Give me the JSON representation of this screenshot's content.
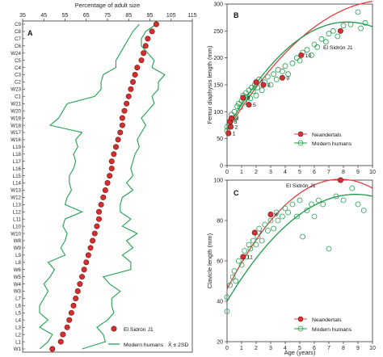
{
  "colors": {
    "red": "#d03030",
    "green": "#22a050",
    "neander_line": "#e04040",
    "modern_line": "#1e9a4a"
  },
  "chart_data": [
    {
      "panel": "A",
      "type": "line",
      "xlabel": "Percentage of adult size",
      "xlim": [
        35,
        115
      ],
      "xticks": [
        "35",
        "45",
        "55",
        "65",
        "75",
        "85",
        "95",
        "105",
        "115"
      ],
      "categories": [
        "C9",
        "C8",
        "C7",
        "C6",
        "W24",
        "C5",
        "C4",
        "C3",
        "C2",
        "W23",
        "C1",
        "W21",
        "W20",
        "W19",
        "W18",
        "W17",
        "W16",
        "L19",
        "L18",
        "L17",
        "L16",
        "L15",
        "L14",
        "W13",
        "W12",
        "L13",
        "L12",
        "L11",
        "L10",
        "W10",
        "W8",
        "W9",
        "L9",
        "L8",
        "W6",
        "W5",
        "W4",
        "W3",
        "L7",
        "L6",
        "L5",
        "L4",
        "L3",
        "L2",
        "L1",
        "W1"
      ],
      "sidron": [
        98,
        96,
        94,
        93,
        92,
        91,
        89,
        88,
        87,
        86,
        85,
        84,
        83,
        82,
        82,
        81,
        80,
        79,
        78,
        77,
        77,
        76,
        75,
        74,
        73,
        72,
        71,
        71,
        70,
        69,
        68,
        67,
        66,
        65,
        64,
        63,
        62,
        61,
        60,
        59,
        58,
        57,
        56,
        54,
        53,
        49
      ],
      "upper": [
        98,
        93,
        91,
        91,
        94,
        97,
        96,
        102,
        99,
        99,
        96,
        97,
        94,
        91,
        93,
        91,
        89,
        90,
        88,
        87,
        86,
        87,
        84,
        87,
        82,
        81,
        81,
        86,
        82,
        89,
        84,
        87,
        82,
        86,
        86,
        73,
        76,
        81,
        77,
        77,
        78,
        75,
        70,
        73,
        74,
        63
      ],
      "lower": [
        90,
        87,
        85,
        83,
        81,
        79,
        79,
        73,
        72,
        72,
        69,
        56,
        54,
        52,
        48,
        63,
        60,
        61,
        59,
        60,
        59,
        57,
        57,
        58,
        56,
        55,
        63,
        55,
        54,
        56,
        55,
        53,
        55,
        47,
        50,
        48,
        45,
        47,
        45,
        43,
        43,
        47,
        43,
        49,
        47,
        43
      ],
      "legend": {
        "sidron": "El Sidrón J1",
        "modern": "Modern humans",
        "formula": "X̄ ± 2SD"
      }
    },
    {
      "panel": "B",
      "type": "scatter",
      "xlabel": "",
      "ylabel": "Femur diaphysis length (mm)",
      "xlim": [
        0,
        10
      ],
      "ylim": [
        0,
        300
      ],
      "xticks": [
        "0",
        "1",
        "2",
        "3",
        "4",
        "5",
        "6",
        "7",
        "8",
        "9",
        "10"
      ],
      "yticks": [
        "0",
        "50",
        "100",
        "150",
        "200",
        "250",
        "300"
      ],
      "sidron_label": "El Sidrón J1",
      "neandertals": [
        {
          "x": 0.1,
          "y": 60,
          "label": "1"
        },
        {
          "x": 0.25,
          "y": 72,
          "label": "2"
        },
        {
          "x": 0.2,
          "y": 82,
          "label": "3"
        },
        {
          "x": 0.3,
          "y": 88,
          "label": "4"
        },
        {
          "x": 1.5,
          "y": 113,
          "label": "5"
        },
        {
          "x": 1.1,
          "y": 126,
          "label": "6"
        },
        {
          "x": 2.0,
          "y": 155,
          "label": "7"
        },
        {
          "x": 2.5,
          "y": 150,
          "label": "8"
        },
        {
          "x": 3.8,
          "y": 163,
          "label": "9"
        },
        {
          "x": 5.1,
          "y": 205,
          "label": "10"
        },
        {
          "x": 7.8,
          "y": 250,
          "label": ""
        }
      ],
      "modern": [
        [
          0,
          65
        ],
        [
          0,
          72
        ],
        [
          0.1,
          60
        ],
        [
          0.2,
          78
        ],
        [
          0.3,
          95
        ],
        [
          0.4,
          85
        ],
        [
          0.5,
          100
        ],
        [
          0.6,
          90
        ],
        [
          0.7,
          110
        ],
        [
          0.8,
          115
        ],
        [
          0.9,
          108
        ],
        [
          1.0,
          120
        ],
        [
          1.1,
          130
        ],
        [
          1.2,
          118
        ],
        [
          1.3,
          135
        ],
        [
          1.4,
          128
        ],
        [
          1.5,
          140
        ],
        [
          1.6,
          125
        ],
        [
          1.7,
          145
        ],
        [
          1.8,
          138
        ],
        [
          1.9,
          150
        ],
        [
          2.0,
          130
        ],
        [
          2.1,
          145
        ],
        [
          2.2,
          160
        ],
        [
          2.4,
          140
        ],
        [
          2.6,
          155
        ],
        [
          2.8,
          165
        ],
        [
          3.0,
          150
        ],
        [
          3.2,
          170
        ],
        [
          3.4,
          160
        ],
        [
          3.5,
          178
        ],
        [
          3.8,
          175
        ],
        [
          4.0,
          185
        ],
        [
          4.2,
          170
        ],
        [
          4.5,
          190
        ],
        [
          4.8,
          200
        ],
        [
          5.0,
          195
        ],
        [
          5.2,
          210
        ],
        [
          5.5,
          215
        ],
        [
          5.8,
          205
        ],
        [
          6.0,
          225
        ],
        [
          6.2,
          220
        ],
        [
          6.5,
          235
        ],
        [
          6.8,
          230
        ],
        [
          7.0,
          245
        ],
        [
          7.3,
          250
        ],
        [
          7.6,
          240
        ],
        [
          8.0,
          260
        ],
        [
          8.5,
          262
        ],
        [
          9.0,
          285
        ],
        [
          9.2,
          255
        ],
        [
          9.5,
          265
        ]
      ],
      "legend": [
        "Neandertals",
        "Modern humans"
      ]
    },
    {
      "panel": "C",
      "type": "scatter",
      "xlabel": "Age (years)",
      "ylabel": "Clavicle length (mm)",
      "xlim": [
        0,
        10
      ],
      "ylim": [
        20,
        100
      ],
      "xticks": [
        "0",
        "1",
        "2",
        "3",
        "4",
        "5",
        "6",
        "7",
        "8",
        "9",
        "10"
      ],
      "yticks": [
        "20",
        "40",
        "60",
        "80",
        "100"
      ],
      "sidron_label": "El Sidrón J1",
      "neandertals": [
        {
          "x": 1.1,
          "y": 62,
          "label": "11"
        },
        {
          "x": 1.9,
          "y": 74,
          "label": "7"
        },
        {
          "x": 3.0,
          "y": 83,
          "label": "8"
        },
        {
          "x": 7.8,
          "y": 100,
          "label": ""
        }
      ],
      "modern": [
        [
          0,
          35
        ],
        [
          0,
          42
        ],
        [
          0.2,
          48
        ],
        [
          0.4,
          52
        ],
        [
          0.5,
          55
        ],
        [
          0.6,
          50
        ],
        [
          0.8,
          60
        ],
        [
          1.0,
          58
        ],
        [
          1.2,
          65
        ],
        [
          1.3,
          62
        ],
        [
          1.5,
          68
        ],
        [
          1.6,
          66
        ],
        [
          1.8,
          70
        ],
        [
          2.0,
          68
        ],
        [
          2.1,
          72
        ],
        [
          2.2,
          76
        ],
        [
          2.4,
          70
        ],
        [
          2.6,
          78
        ],
        [
          2.8,
          75
        ],
        [
          3.0,
          80
        ],
        [
          3.2,
          76
        ],
        [
          3.4,
          84
        ],
        [
          3.5,
          80
        ],
        [
          3.8,
          82
        ],
        [
          4.0,
          86
        ],
        [
          4.2,
          84
        ],
        [
          4.5,
          88
        ],
        [
          4.8,
          82
        ],
        [
          5.0,
          90
        ],
        [
          5.2,
          72
        ],
        [
          5.5,
          85
        ],
        [
          5.8,
          88
        ],
        [
          6.0,
          82
        ],
        [
          6.3,
          90
        ],
        [
          6.6,
          88
        ],
        [
          7.0,
          66
        ],
        [
          7.5,
          92
        ],
        [
          8.0,
          90
        ],
        [
          8.6,
          96
        ],
        [
          9.0,
          88
        ],
        [
          9.4,
          85
        ]
      ],
      "legend": [
        "Neandertals",
        "Modern humans"
      ]
    }
  ]
}
